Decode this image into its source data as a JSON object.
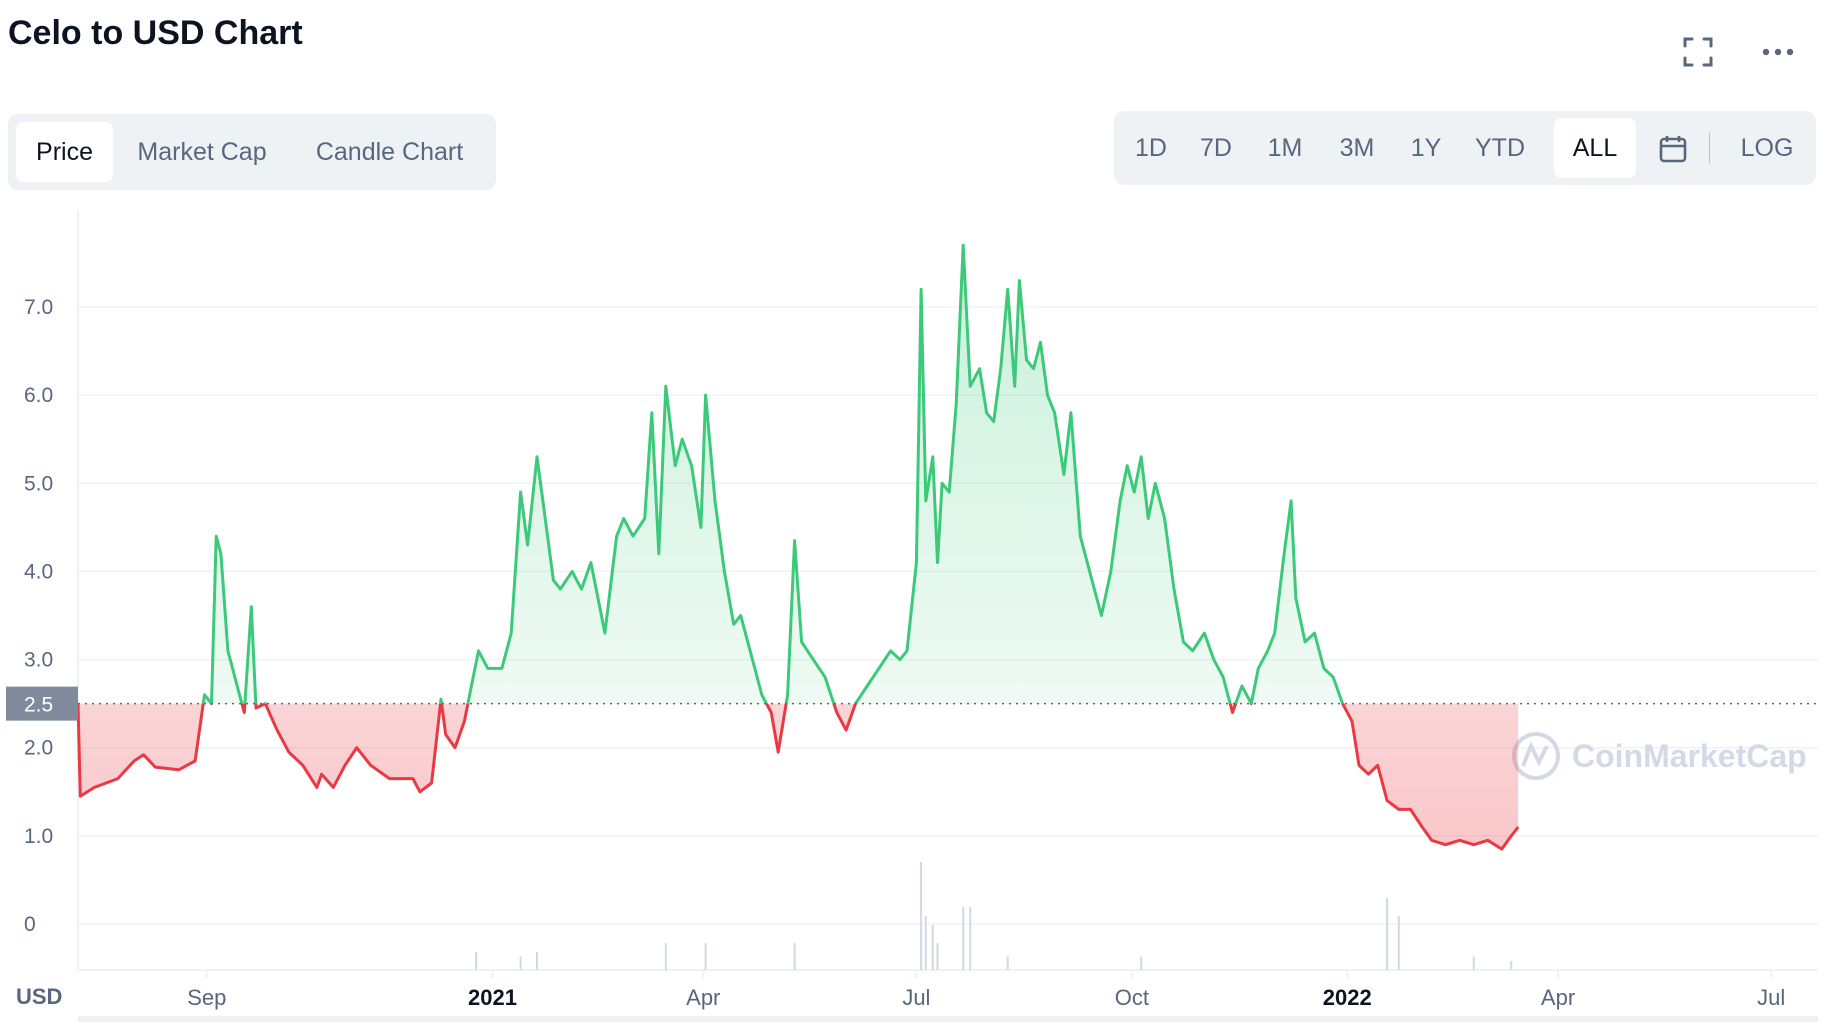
{
  "title": "Celo to USD Chart",
  "header_icons": {
    "fullscreen": "fullscreen-icon",
    "more": "more-dots-icon"
  },
  "tabs": [
    {
      "label": "Price",
      "active": true
    },
    {
      "label": "Market Cap",
      "active": false
    },
    {
      "label": "Candle Chart",
      "active": false
    }
  ],
  "ranges": [
    {
      "label": "1D",
      "active": false
    },
    {
      "label": "7D",
      "active": false
    },
    {
      "label": "1M",
      "active": false
    },
    {
      "label": "3M",
      "active": false
    },
    {
      "label": "1Y",
      "active": false
    },
    {
      "label": "YTD",
      "active": false
    },
    {
      "label": "ALL",
      "active": true
    }
  ],
  "calendar_icon": "calendar-icon",
  "log_label": "LOG",
  "colors": {
    "up": "#3cc97a",
    "down": "#ea3943",
    "grid": "#eff2f5",
    "axis_text": "#58667e",
    "reference_badge": "#808a9d",
    "watermark": "#cfd6e4"
  },
  "chart_data": {
    "type": "area",
    "currency_label": "USD",
    "reference_value": 2.5,
    "reference_label": "2.5",
    "ylim": [
      -0.5,
      8.0
    ],
    "y_ticks": [
      "0",
      "1.0",
      "2.0",
      "3.0",
      "4.0",
      "5.0",
      "6.0",
      "7.0"
    ],
    "x_ticks": [
      {
        "label": "Sep",
        "date": "2020-09-01",
        "bold": false
      },
      {
        "label": "2021",
        "date": "2021-01-01",
        "bold": true
      },
      {
        "label": "Apr",
        "date": "2021-04-01",
        "bold": false
      },
      {
        "label": "Jul",
        "date": "2021-07-01",
        "bold": false
      },
      {
        "label": "Oct",
        "date": "2021-10-01",
        "bold": false
      },
      {
        "label": "2022",
        "date": "2022-01-01",
        "bold": true
      },
      {
        "label": "Apr",
        "date": "2022-04-01",
        "bold": false
      },
      {
        "label": "Jul",
        "date": "2022-07-01",
        "bold": false
      }
    ],
    "x_range": [
      "2020-07-08",
      "2022-07-21"
    ],
    "grid": true,
    "watermark": "CoinMarketCap",
    "series": [
      {
        "points": [
          [
            "2020-07-08",
            2.5
          ],
          [
            "2020-07-09",
            1.45
          ],
          [
            "2020-07-15",
            1.55
          ],
          [
            "2020-07-25",
            1.65
          ],
          [
            "2020-08-01",
            1.85
          ],
          [
            "2020-08-05",
            1.92
          ],
          [
            "2020-08-10",
            1.78
          ],
          [
            "2020-08-20",
            1.75
          ],
          [
            "2020-08-27",
            1.85
          ],
          [
            "2020-08-31",
            2.6
          ],
          [
            "2020-09-03",
            2.5
          ],
          [
            "2020-09-05",
            4.4
          ],
          [
            "2020-09-07",
            4.2
          ],
          [
            "2020-09-10",
            3.1
          ],
          [
            "2020-09-14",
            2.7
          ],
          [
            "2020-09-17",
            2.4
          ],
          [
            "2020-09-20",
            3.6
          ],
          [
            "2020-09-22",
            2.45
          ],
          [
            "2020-09-26",
            2.5
          ],
          [
            "2020-10-01",
            2.2
          ],
          [
            "2020-10-06",
            1.95
          ],
          [
            "2020-10-12",
            1.8
          ],
          [
            "2020-10-18",
            1.55
          ],
          [
            "2020-10-20",
            1.7
          ],
          [
            "2020-10-25",
            1.55
          ],
          [
            "2020-10-30",
            1.8
          ],
          [
            "2020-11-04",
            2.0
          ],
          [
            "2020-11-10",
            1.8
          ],
          [
            "2020-11-18",
            1.65
          ],
          [
            "2020-11-28",
            1.65
          ],
          [
            "2020-12-01",
            1.5
          ],
          [
            "2020-12-06",
            1.6
          ],
          [
            "2020-12-10",
            2.55
          ],
          [
            "2020-12-12",
            2.15
          ],
          [
            "2020-12-16",
            2.0
          ],
          [
            "2020-12-20",
            2.3
          ],
          [
            "2020-12-23",
            2.7
          ],
          [
            "2020-12-26",
            3.1
          ],
          [
            "2020-12-30",
            2.9
          ],
          [
            "2021-01-05",
            2.9
          ],
          [
            "2021-01-09",
            3.3
          ],
          [
            "2021-01-13",
            4.9
          ],
          [
            "2021-01-16",
            4.3
          ],
          [
            "2021-01-20",
            5.3
          ],
          [
            "2021-01-24",
            4.5
          ],
          [
            "2021-01-27",
            3.9
          ],
          [
            "2021-01-30",
            3.8
          ],
          [
            "2021-02-04",
            4.0
          ],
          [
            "2021-02-08",
            3.8
          ],
          [
            "2021-02-12",
            4.1
          ],
          [
            "2021-02-18",
            3.3
          ],
          [
            "2021-02-23",
            4.4
          ],
          [
            "2021-02-26",
            4.6
          ],
          [
            "2021-03-02",
            4.4
          ],
          [
            "2021-03-07",
            4.6
          ],
          [
            "2021-03-10",
            5.8
          ],
          [
            "2021-03-13",
            4.2
          ],
          [
            "2021-03-16",
            6.1
          ],
          [
            "2021-03-20",
            5.2
          ],
          [
            "2021-03-23",
            5.5
          ],
          [
            "2021-03-27",
            5.2
          ],
          [
            "2021-03-31",
            4.5
          ],
          [
            "2021-04-02",
            6.0
          ],
          [
            "2021-04-06",
            4.8
          ],
          [
            "2021-04-10",
            4.0
          ],
          [
            "2021-04-14",
            3.4
          ],
          [
            "2021-04-17",
            3.5
          ],
          [
            "2021-04-22",
            3.0
          ],
          [
            "2021-04-26",
            2.6
          ],
          [
            "2021-04-30",
            2.4
          ],
          [
            "2021-05-03",
            1.95
          ],
          [
            "2021-05-07",
            2.6
          ],
          [
            "2021-05-10",
            4.35
          ],
          [
            "2021-05-13",
            3.2
          ],
          [
            "2021-05-18",
            3.0
          ],
          [
            "2021-05-23",
            2.8
          ],
          [
            "2021-05-28",
            2.4
          ],
          [
            "2021-06-01",
            2.2
          ],
          [
            "2021-06-05",
            2.5
          ],
          [
            "2021-06-10",
            2.7
          ],
          [
            "2021-06-15",
            2.9
          ],
          [
            "2021-06-20",
            3.1
          ],
          [
            "2021-06-24",
            3.0
          ],
          [
            "2021-06-27",
            3.1
          ],
          [
            "2021-07-01",
            4.1
          ],
          [
            "2021-07-03",
            7.2
          ],
          [
            "2021-07-05",
            4.8
          ],
          [
            "2021-07-08",
            5.3
          ],
          [
            "2021-07-10",
            4.1
          ],
          [
            "2021-07-12",
            5.0
          ],
          [
            "2021-07-15",
            4.9
          ],
          [
            "2021-07-18",
            5.9
          ],
          [
            "2021-07-21",
            7.7
          ],
          [
            "2021-07-24",
            6.1
          ],
          [
            "2021-07-28",
            6.3
          ],
          [
            "2021-07-31",
            5.8
          ],
          [
            "2021-08-03",
            5.7
          ],
          [
            "2021-08-06",
            6.3
          ],
          [
            "2021-08-09",
            7.2
          ],
          [
            "2021-08-12",
            6.1
          ],
          [
            "2021-08-14",
            7.3
          ],
          [
            "2021-08-17",
            6.4
          ],
          [
            "2021-08-20",
            6.3
          ],
          [
            "2021-08-23",
            6.6
          ],
          [
            "2021-08-26",
            6.0
          ],
          [
            "2021-08-29",
            5.8
          ],
          [
            "2021-09-02",
            5.1
          ],
          [
            "2021-09-05",
            5.8
          ],
          [
            "2021-09-09",
            4.4
          ],
          [
            "2021-09-14",
            3.9
          ],
          [
            "2021-09-18",
            3.5
          ],
          [
            "2021-09-22",
            4.0
          ],
          [
            "2021-09-26",
            4.8
          ],
          [
            "2021-09-29",
            5.2
          ],
          [
            "2021-10-02",
            4.9
          ],
          [
            "2021-10-05",
            5.3
          ],
          [
            "2021-10-08",
            4.6
          ],
          [
            "2021-10-11",
            5.0
          ],
          [
            "2021-10-15",
            4.6
          ],
          [
            "2021-10-19",
            3.8
          ],
          [
            "2021-10-23",
            3.2
          ],
          [
            "2021-10-27",
            3.1
          ],
          [
            "2021-11-01",
            3.3
          ],
          [
            "2021-11-05",
            3.0
          ],
          [
            "2021-11-09",
            2.8
          ],
          [
            "2021-11-13",
            2.4
          ],
          [
            "2021-11-17",
            2.7
          ],
          [
            "2021-11-21",
            2.5
          ],
          [
            "2021-11-24",
            2.9
          ],
          [
            "2021-11-28",
            3.1
          ],
          [
            "2021-12-01",
            3.3
          ],
          [
            "2021-12-05",
            4.2
          ],
          [
            "2021-12-08",
            4.8
          ],
          [
            "2021-12-10",
            3.7
          ],
          [
            "2021-12-14",
            3.2
          ],
          [
            "2021-12-18",
            3.3
          ],
          [
            "2021-12-22",
            2.9
          ],
          [
            "2021-12-26",
            2.8
          ],
          [
            "2021-12-30",
            2.5
          ],
          [
            "2022-01-03",
            2.3
          ],
          [
            "2022-01-06",
            1.8
          ],
          [
            "2022-01-10",
            1.7
          ],
          [
            "2022-01-14",
            1.8
          ],
          [
            "2022-01-18",
            1.4
          ],
          [
            "2022-01-23",
            1.3
          ],
          [
            "2022-01-28",
            1.3
          ],
          [
            "2022-02-02",
            1.1
          ],
          [
            "2022-02-06",
            0.95
          ],
          [
            "2022-02-12",
            0.9
          ],
          [
            "2022-02-18",
            0.95
          ],
          [
            "2022-02-24",
            0.9
          ],
          [
            "2022-03-02",
            0.95
          ],
          [
            "2022-03-08",
            0.85
          ],
          [
            "2022-03-12",
            1.0
          ],
          [
            "2022-03-15",
            1.1
          ]
        ]
      }
    ],
    "volume_note": "volume bars along bottom",
    "volume": [
      [
        "2020-12-25",
        0.02
      ],
      [
        "2021-01-13",
        0.015
      ],
      [
        "2021-01-20",
        0.02
      ],
      [
        "2021-03-16",
        0.03
      ],
      [
        "2021-04-02",
        0.03
      ],
      [
        "2021-05-10",
        0.03
      ],
      [
        "2021-07-03",
        0.12
      ],
      [
        "2021-07-05",
        0.06
      ],
      [
        "2021-07-08",
        0.05
      ],
      [
        "2021-07-10",
        0.03
      ],
      [
        "2021-07-21",
        0.07
      ],
      [
        "2021-07-24",
        0.07
      ],
      [
        "2021-08-09",
        0.015
      ],
      [
        "2021-10-05",
        0.015
      ],
      [
        "2022-01-18",
        0.08
      ],
      [
        "2022-01-23",
        0.06
      ],
      [
        "2022-02-24",
        0.015
      ],
      [
        "2022-03-12",
        0.01
      ]
    ]
  }
}
